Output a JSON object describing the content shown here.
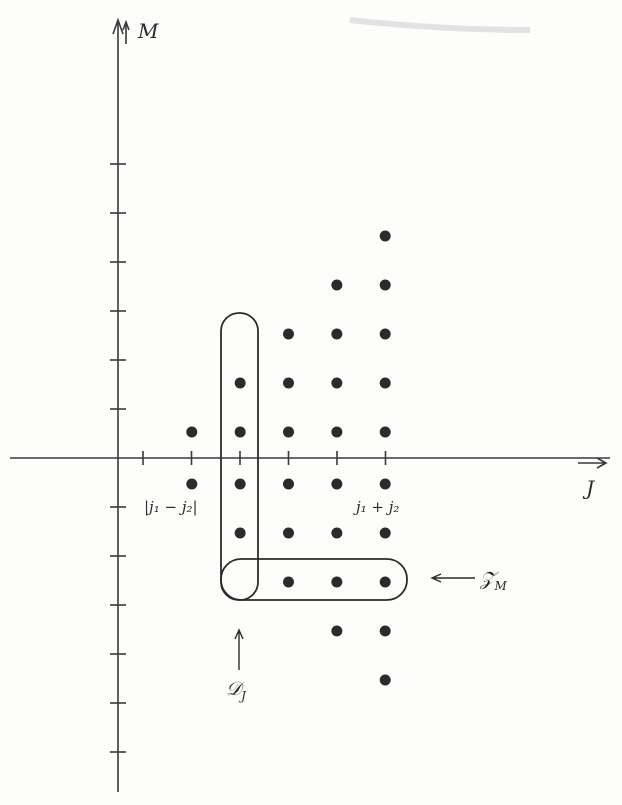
{
  "axes": {
    "x_label": "J",
    "y_label": "M"
  },
  "ticks": {
    "j_min_label": "|j₁ − j₂|",
    "j_max_label": "j₁ + j₂"
  },
  "annotations": {
    "row_label_main": "𝒵",
    "row_label_sub": "M",
    "column_label_main": "𝒟",
    "column_label_sub": "J"
  },
  "lattice": {
    "j_values": [
      1,
      2,
      3,
      4,
      5
    ],
    "m_range_by_j": [
      [
        -1,
        1
      ],
      [
        -2,
        2
      ],
      [
        -3,
        3
      ],
      [
        -4,
        4
      ],
      [
        -5,
        5
      ]
    ],
    "highlighted_column_j": 2,
    "highlighted_row_m": -2
  }
}
